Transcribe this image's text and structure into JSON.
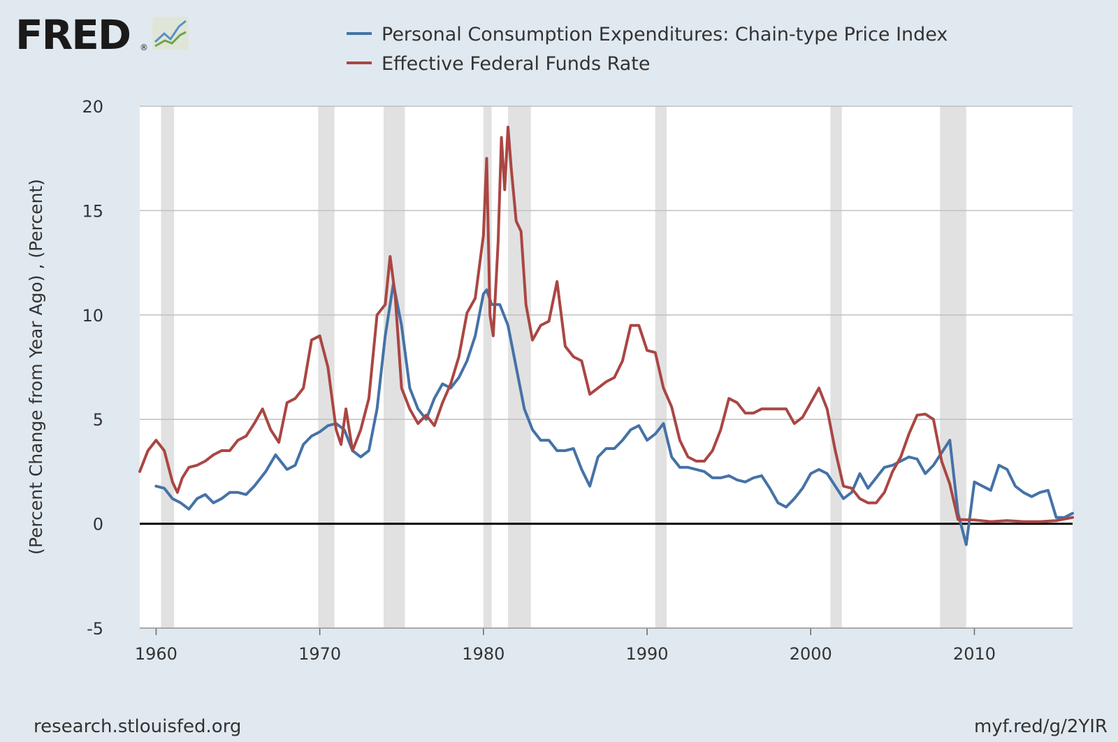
{
  "header": {
    "logo_text": "FRED",
    "logo_mark": "®"
  },
  "footer": {
    "source": "research.stlouisfed.org",
    "short_link": "myf.red/g/2YIR"
  },
  "colors": {
    "background": "#e1e9f0",
    "plot_bg": "#ffffff",
    "pce": "#4572a7",
    "fedfunds": "#aa4643",
    "recession": "#e1e1e1",
    "grid": "#c0c0c0",
    "zero_line": "#000000"
  },
  "chart_data": {
    "type": "line",
    "title": "",
    "xlabel": "",
    "ylabel": "(Percent Change from Year Ago) , (Percent)",
    "xlim": [
      1959,
      2016
    ],
    "ylim": [
      -5,
      20
    ],
    "yticks": [
      -5,
      0,
      5,
      10,
      15,
      20
    ],
    "ytick_labels": [
      "-5",
      "0",
      "5",
      "10",
      "15",
      "20"
    ],
    "xticks": [
      1960,
      1970,
      1980,
      1990,
      2000,
      2010
    ],
    "xtick_labels": [
      "1960",
      "1970",
      "1980",
      "1990",
      "2000",
      "2010"
    ],
    "grid": true,
    "legend_position": "top",
    "recessions": [
      [
        1960.3,
        1961.1
      ],
      [
        1969.9,
        1970.9
      ],
      [
        1973.9,
        1975.2
      ],
      [
        1980.0,
        1980.5
      ],
      [
        1981.5,
        1982.9
      ],
      [
        1990.5,
        1991.2
      ],
      [
        2001.2,
        2001.9
      ],
      [
        2007.9,
        2009.5
      ]
    ],
    "series": [
      {
        "name": "Personal Consumption Expenditures: Chain-type Price Index",
        "color": "#4572a7",
        "x": [
          1960.0,
          1960.5,
          1961.0,
          1961.5,
          1962.0,
          1962.5,
          1963.0,
          1963.5,
          1964.0,
          1964.5,
          1965.0,
          1965.5,
          1966.0,
          1966.7,
          1967.3,
          1968.0,
          1968.5,
          1969.0,
          1969.5,
          1970.0,
          1970.5,
          1971.0,
          1971.5,
          1972.0,
          1972.5,
          1973.0,
          1973.5,
          1974.0,
          1974.5,
          1975.0,
          1975.5,
          1976.0,
          1976.5,
          1977.0,
          1977.5,
          1978.0,
          1978.5,
          1979.0,
          1979.5,
          1980.0,
          1980.2,
          1980.5,
          1981.0,
          1981.5,
          1982.0,
          1982.5,
          1983.0,
          1983.5,
          1984.0,
          1984.5,
          1985.0,
          1985.5,
          1986.0,
          1986.5,
          1987.0,
          1987.5,
          1988.0,
          1988.5,
          1989.0,
          1989.5,
          1990.0,
          1990.5,
          1991.0,
          1991.5,
          1992.0,
          1992.5,
          1993.0,
          1993.5,
          1994.0,
          1994.5,
          1995.0,
          1995.5,
          1996.0,
          1996.5,
          1997.0,
          1997.5,
          1998.0,
          1998.5,
          1999.0,
          1999.5,
          2000.0,
          2000.5,
          2001.0,
          2001.5,
          2002.0,
          2002.5,
          2003.0,
          2003.5,
          2004.0,
          2004.5,
          2005.0,
          2005.5,
          2006.0,
          2006.5,
          2007.0,
          2007.5,
          2008.0,
          2008.5,
          2009.0,
          2009.5,
          2010.0,
          2010.5,
          2011.0,
          2011.5,
          2012.0,
          2012.5,
          2013.0,
          2013.5,
          2014.0,
          2014.5,
          2015.0,
          2015.5,
          2016.0
        ],
        "values": [
          1.8,
          1.7,
          1.2,
          1.0,
          0.7,
          1.2,
          1.4,
          1.0,
          1.2,
          1.5,
          1.5,
          1.4,
          1.8,
          2.5,
          3.3,
          2.6,
          2.8,
          3.8,
          4.2,
          4.4,
          4.7,
          4.8,
          4.5,
          3.5,
          3.2,
          3.5,
          5.5,
          9.0,
          11.5,
          9.5,
          6.5,
          5.5,
          5.0,
          6.0,
          6.7,
          6.5,
          7.0,
          7.8,
          9.0,
          11.0,
          11.2,
          10.5,
          10.5,
          9.5,
          7.5,
          5.5,
          4.5,
          4.0,
          4.0,
          3.5,
          3.5,
          3.6,
          2.6,
          1.8,
          3.2,
          3.6,
          3.6,
          4.0,
          4.5,
          4.7,
          4.0,
          4.3,
          4.8,
          3.2,
          2.7,
          2.7,
          2.6,
          2.5,
          2.2,
          2.2,
          2.3,
          2.1,
          2.0,
          2.2,
          2.3,
          1.7,
          1.0,
          0.8,
          1.2,
          1.7,
          2.4,
          2.6,
          2.4,
          1.8,
          1.2,
          1.5,
          2.4,
          1.7,
          2.2,
          2.7,
          2.8,
          3.0,
          3.2,
          3.1,
          2.4,
          2.8,
          3.4,
          4.0,
          0.5,
          -1.0,
          2.0,
          1.8,
          1.6,
          2.8,
          2.6,
          1.8,
          1.5,
          1.3,
          1.5,
          1.6,
          0.3,
          0.3,
          0.5
        ]
      },
      {
        "name": "Effective Federal Funds Rate",
        "color": "#aa4643",
        "x": [
          1959.0,
          1959.5,
          1960.0,
          1960.5,
          1961.0,
          1961.3,
          1961.6,
          1962.0,
          1962.5,
          1963.0,
          1963.5,
          1964.0,
          1964.5,
          1965.0,
          1965.5,
          1966.0,
          1966.5,
          1967.0,
          1967.5,
          1968.0,
          1968.5,
          1969.0,
          1969.5,
          1970.0,
          1970.5,
          1971.0,
          1971.3,
          1971.6,
          1972.0,
          1972.5,
          1973.0,
          1973.5,
          1974.0,
          1974.3,
          1974.6,
          1975.0,
          1975.5,
          1976.0,
          1976.5,
          1977.0,
          1977.5,
          1978.0,
          1978.5,
          1979.0,
          1979.5,
          1980.0,
          1980.2,
          1980.4,
          1980.6,
          1980.9,
          1981.1,
          1981.3,
          1981.5,
          1981.7,
          1982.0,
          1982.3,
          1982.6,
          1983.0,
          1983.5,
          1984.0,
          1984.5,
          1985.0,
          1985.5,
          1986.0,
          1986.5,
          1987.0,
          1987.5,
          1988.0,
          1988.5,
          1989.0,
          1989.5,
          1990.0,
          1990.5,
          1991.0,
          1991.5,
          1992.0,
          1992.5,
          1993.0,
          1993.5,
          1994.0,
          1994.5,
          1995.0,
          1995.5,
          1996.0,
          1996.5,
          1997.0,
          1997.5,
          1998.0,
          1998.5,
          1999.0,
          1999.5,
          2000.0,
          2000.5,
          2001.0,
          2001.5,
          2002.0,
          2002.5,
          2003.0,
          2003.5,
          2004.0,
          2004.5,
          2005.0,
          2005.5,
          2006.0,
          2006.5,
          2007.0,
          2007.5,
          2008.0,
          2008.5,
          2009.0,
          2010.0,
          2011.0,
          2012.0,
          2013.0,
          2014.0,
          2015.0,
          2016.0
        ],
        "values": [
          2.5,
          3.5,
          4.0,
          3.5,
          2.0,
          1.5,
          2.2,
          2.7,
          2.8,
          3.0,
          3.3,
          3.5,
          3.5,
          4.0,
          4.2,
          4.8,
          5.5,
          4.5,
          3.9,
          5.8,
          6.0,
          6.5,
          8.8,
          9.0,
          7.5,
          4.5,
          3.8,
          5.5,
          3.5,
          4.5,
          6.0,
          10.0,
          10.5,
          12.8,
          11.0,
          6.5,
          5.5,
          4.8,
          5.2,
          4.7,
          5.8,
          6.7,
          8.0,
          10.1,
          10.8,
          13.8,
          17.5,
          10.0,
          9.0,
          13.5,
          18.5,
          16.0,
          19.0,
          17.0,
          14.5,
          14.0,
          10.5,
          8.8,
          9.5,
          9.7,
          11.6,
          8.5,
          8.0,
          7.8,
          6.2,
          6.5,
          6.8,
          7.0,
          7.8,
          9.5,
          9.5,
          8.3,
          8.2,
          6.5,
          5.6,
          4.0,
          3.2,
          3.0,
          3.0,
          3.5,
          4.5,
          6.0,
          5.8,
          5.3,
          5.3,
          5.5,
          5.5,
          5.5,
          5.5,
          4.8,
          5.1,
          5.8,
          6.5,
          5.5,
          3.5,
          1.8,
          1.7,
          1.2,
          1.0,
          1.0,
          1.5,
          2.5,
          3.2,
          4.3,
          5.2,
          5.25,
          5.0,
          3.0,
          1.9,
          0.2,
          0.18,
          0.1,
          0.15,
          0.1,
          0.1,
          0.15,
          0.3
        ]
      }
    ]
  }
}
